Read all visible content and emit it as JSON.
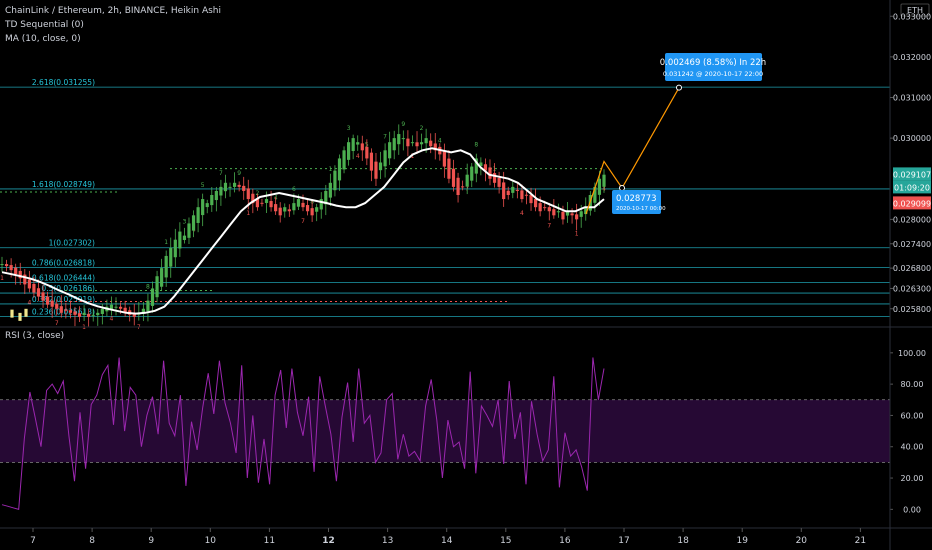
{
  "header": {
    "title": "ChainLink / Ethereum, 2h, BINANCE, Heikin Ashi",
    "indicator_1": "TD Sequential (0)",
    "indicator_2": "MA (10, close, 0)",
    "currency": "ETH"
  },
  "rsi_pane": {
    "label": "RSI (3, close)"
  },
  "colors": {
    "background": "#000000",
    "bull": "#4caf50",
    "bear": "#ef5350",
    "ma": "#ffffff",
    "fib": "#26c6da",
    "rsi": "#9c27b0",
    "projection": "#ff9800",
    "callout": "#2196f3"
  },
  "chart_data": [
    {
      "type": "candlestick",
      "title": "ChainLink / Ethereum, 2h, BINANCE, Heikin Ashi",
      "x_ticks": [
        "7",
        "8",
        "9",
        "10",
        "11",
        "12",
        "13",
        "14",
        "15",
        "16",
        "17",
        "18",
        "19",
        "20",
        "21"
      ],
      "price_ticks": [
        "0.033000",
        "0.032000",
        "0.031000",
        "0.030000",
        "0.029107",
        "01:09:20",
        "0.029099",
        "0.028000",
        "0.027400",
        "0.026800",
        "0.026300",
        "0.025800"
      ],
      "ylim": [
        0.0254,
        0.0334
      ],
      "fib_levels": [
        {
          "label": "2.618(0.031255)",
          "value": 0.031255
        },
        {
          "label": "1.618(0.028749)",
          "value": 0.028749
        },
        {
          "label": "1(0.027302)",
          "value": 0.027302
        },
        {
          "label": "0.786(0.026818)",
          "value": 0.026818
        },
        {
          "label": "0.618(0.026444)",
          "value": 0.026444
        },
        {
          "label": "0.5(0.026186)",
          "value": 0.026186
        },
        {
          "label": "0.382(0.025919)",
          "value": 0.025919
        },
        {
          "label": "0.236(0.025613)",
          "value": 0.025613
        }
      ],
      "close_series": [
        0.0269,
        0.02685,
        0.02675,
        0.02665,
        0.02655,
        0.0264,
        0.0263,
        0.0262,
        0.0261,
        0.026,
        0.0259,
        0.02585,
        0.0258,
        0.0257,
        0.02575,
        0.0257,
        0.02565,
        0.0256,
        0.0257,
        0.0256,
        0.02565,
        0.0257,
        0.0258,
        0.02585,
        0.0259,
        0.02585,
        0.0258,
        0.0257,
        0.02565,
        0.0256,
        0.0257,
        0.0258,
        0.026,
        0.0263,
        0.0266,
        0.0268,
        0.0271,
        0.0273,
        0.0275,
        0.0277,
        0.0276,
        0.0279,
        0.0281,
        0.0283,
        0.0285,
        0.0284,
        0.0286,
        0.0287,
        0.0288,
        0.0289,
        0.0288,
        0.0289,
        0.0288,
        0.0287,
        0.0285,
        0.0284,
        0.0283,
        0.0284,
        0.0285,
        0.0283,
        0.0282,
        0.0281,
        0.0283,
        0.0282,
        0.0284,
        0.0285,
        0.0283,
        0.0282,
        0.0281,
        0.0283,
        0.0285,
        0.0287,
        0.0289,
        0.0292,
        0.0295,
        0.0297,
        0.0299,
        0.03,
        0.0299,
        0.0297,
        0.0295,
        0.0292,
        0.029,
        0.0294,
        0.0297,
        0.0299,
        0.03,
        0.0301,
        0.03,
        0.0298,
        0.0299,
        0.0298,
        0.0299,
        0.03,
        0.0298,
        0.0297,
        0.0296,
        0.0293,
        0.029,
        0.0288,
        0.0286,
        0.0288,
        0.0291,
        0.0293,
        0.0295,
        0.0294,
        0.0292,
        0.029,
        0.0289,
        0.0288,
        0.0285,
        0.0286,
        0.0288,
        0.0287,
        0.0285,
        0.0286,
        0.0284,
        0.0283,
        0.0282,
        0.0283,
        0.0282,
        0.0281,
        0.0282,
        0.028,
        0.0282,
        0.0281,
        0.028,
        0.0282,
        0.0283,
        0.0286,
        0.0288,
        0.029,
        0.0291
      ],
      "ma_series": [
        0.0267,
        0.02665,
        0.0266,
        0.02654,
        0.02646,
        0.02636,
        0.02625,
        0.02615,
        0.02604,
        0.02594,
        0.02586,
        0.0258,
        0.02575,
        0.0257,
        0.02568,
        0.0257,
        0.02575,
        0.02585,
        0.0261,
        0.0264,
        0.0267,
        0.027,
        0.0273,
        0.0276,
        0.0279,
        0.0282,
        0.0284,
        0.02855,
        0.0286,
        0.02865,
        0.0286,
        0.02855,
        0.0285,
        0.02845,
        0.0284,
        0.02834,
        0.0283,
        0.0283,
        0.0284,
        0.0286,
        0.0288,
        0.0291,
        0.0294,
        0.0296,
        0.0297,
        0.02975,
        0.0297,
        0.02965,
        0.0297,
        0.0296,
        0.0293,
        0.0291,
        0.02905,
        0.029,
        0.0289,
        0.0287,
        0.0285,
        0.0284,
        0.0283,
        0.0282,
        0.0282,
        0.0283,
        0.0283,
        0.0285
      ],
      "rsi": {
        "label": "RSI (3, close)",
        "ticks": [
          "100.00",
          "80.00",
          "60.00",
          "40.00",
          "20.00",
          "0.00"
        ],
        "ylim": [
          -10,
          105
        ],
        "overbought": 70,
        "oversold": 30,
        "values": [
          3,
          2,
          1,
          0,
          45,
          75,
          58,
          40,
          76,
          80,
          74,
          82,
          47,
          18,
          62,
          26,
          67,
          73,
          86,
          92,
          54,
          97,
          50,
          78,
          73,
          40,
          60,
          72,
          48,
          95,
          55,
          47,
          73,
          15,
          56,
          38,
          65,
          87,
          61,
          95,
          68,
          55,
          36,
          92,
          20,
          60,
          17,
          45,
          16,
          73,
          89,
          52,
          90,
          62,
          47,
          72,
          24,
          85,
          66,
          48,
          18,
          59,
          81,
          43,
          90,
          55,
          60,
          30,
          36,
          70,
          74,
          32,
          48,
          34,
          37,
          31,
          66,
          83,
          57,
          20,
          57,
          40,
          43,
          26,
          88,
          23,
          66,
          60,
          53,
          70,
          29,
          82,
          45,
          62,
          16,
          69,
          48,
          31,
          38,
          85,
          14,
          49,
          34,
          38,
          27,
          12,
          97,
          70,
          90
        ]
      },
      "annotations": {
        "target_label": "0.002469 (8.58%) In 22h",
        "target_detail": "0.031242 @ 2020-10-17  22:00",
        "pivot_value": "0.028773",
        "pivot_date": "2020-10-17 00:00",
        "projection_points": [
          {
            "x": "2020-10-16 16:00",
            "y": 0.029107
          },
          {
            "x": "2020-10-17 00:00",
            "y": 0.028773
          },
          {
            "x": "2020-10-17 22:00",
            "y": 0.031242
          }
        ]
      },
      "td_digits": [
        "1",
        "2",
        "3",
        "4",
        "5",
        "6",
        "7",
        "8",
        "9"
      ],
      "grid": false,
      "legend": "top-left"
    }
  ]
}
